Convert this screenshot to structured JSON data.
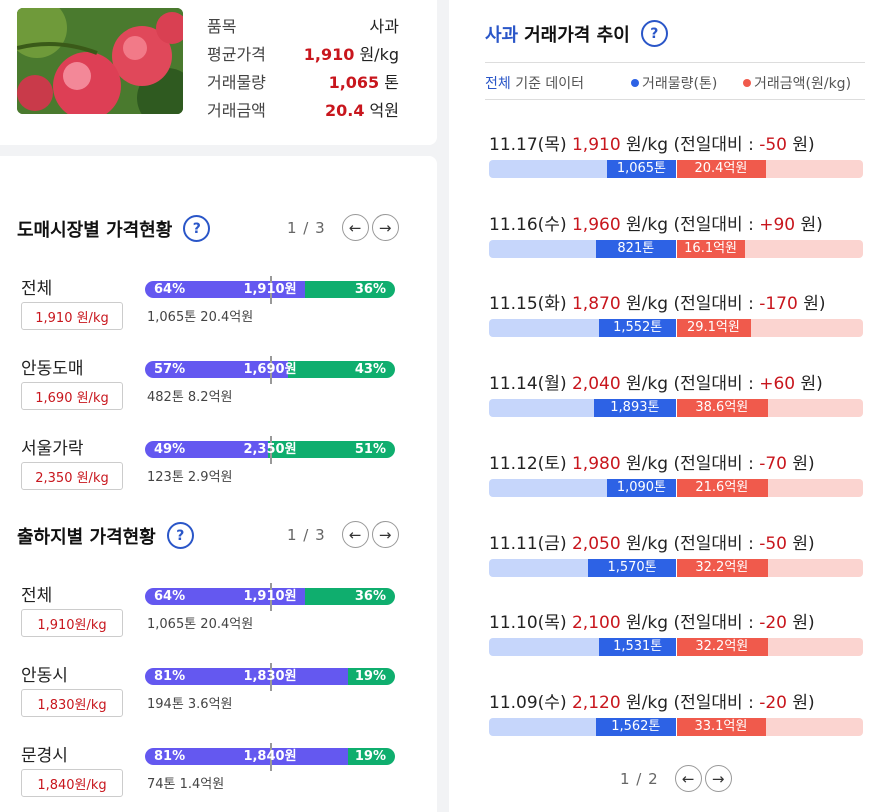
{
  "summary": {
    "rows": [
      {
        "label": "품목",
        "value": "사과",
        "unit": ""
      },
      {
        "label": "평균가격",
        "value": "1,910",
        "unit": " 원/kg"
      },
      {
        "label": "거래물량",
        "value": "1,065",
        "unit": " 톤"
      },
      {
        "label": "거래금액",
        "value": "20.4",
        "unit": " 억원"
      }
    ]
  },
  "wholesale": {
    "title": "도매시장별 가격현황",
    "help": "?",
    "page": "1 / 3",
    "rows": [
      {
        "name": "전체",
        "price": "1,910 원/kg",
        "left_pct": "64%",
        "right_pct": "36%",
        "left_share": 0.64,
        "center": "1,910원",
        "sub": "1,065톤 20.4억원"
      },
      {
        "name": "안동도매",
        "price": "1,690 원/kg",
        "left_pct": "57%",
        "right_pct": "43%",
        "left_share": 0.57,
        "center": "1,690원",
        "sub": "482톤 8.2억원"
      },
      {
        "name": "서울가락",
        "price": "2,350 원/kg",
        "left_pct": "49%",
        "right_pct": "51%",
        "left_share": 0.49,
        "center": "2,350원",
        "sub": "123톤 2.9억원"
      }
    ]
  },
  "origin": {
    "title": "출하지별 가격현황",
    "help": "?",
    "page": "1 / 3",
    "rows": [
      {
        "name": "전체",
        "price": "1,910원/kg",
        "left_pct": "64%",
        "right_pct": "36%",
        "left_share": 0.64,
        "center": "1,910원",
        "sub": "1,065톤 20.4억원"
      },
      {
        "name": "안동시",
        "price": "1,830원/kg",
        "left_pct": "81%",
        "right_pct": "19%",
        "left_share": 0.81,
        "center": "1,830원",
        "sub": "194톤 3.6억원"
      },
      {
        "name": "문경시",
        "price": "1,840원/kg",
        "left_pct": "81%",
        "right_pct": "19%",
        "left_share": 0.81,
        "center": "1,840원",
        "sub": "74톤 1.4억원"
      }
    ]
  },
  "trend": {
    "title_highlight": "사과",
    "title_rest": "거래가격 추이",
    "help": "?",
    "basis_blue": "전체",
    "basis_rest": " 기준 데이터",
    "legend_volume": "거래물량(톤)",
    "legend_amount": "거래금액(원/kg)",
    "colors": {
      "volume": "#2d62e5",
      "amount": "#f05a4c"
    },
    "page": "1 / 2",
    "rows": [
      {
        "date": "11.17(목)",
        "price": "1,910",
        "unit": " 원/kg (전일대비 : ",
        "diff": "-50",
        "tail": " 원)",
        "volume": "1,065톤",
        "amount": "20.4억원",
        "vol_share": 0.37,
        "amt_share": 0.48
      },
      {
        "date": "11.16(수)",
        "price": "1,960",
        "unit": " 원/kg (전일대비 : ",
        "diff": "+90",
        "tail": " 원)",
        "volume": "821톤",
        "amount": "16.1억원",
        "vol_share": 0.43,
        "amt_share": 0.37
      },
      {
        "date": "11.15(화)",
        "price": "1,870",
        "unit": " 원/kg (전일대비 : ",
        "diff": "-170",
        "tail": " 원)",
        "volume": "1,552톤",
        "amount": "29.1억원",
        "vol_share": 0.41,
        "amt_share": 0.4
      },
      {
        "date": "11.14(월)",
        "price": "2,040",
        "unit": " 원/kg (전일대비 : ",
        "diff": "+60",
        "tail": " 원)",
        "volume": "1,893톤",
        "amount": "38.6억원",
        "vol_share": 0.44,
        "amt_share": 0.49
      },
      {
        "date": "11.12(토)",
        "price": "1,980",
        "unit": " 원/kg (전일대비 : ",
        "diff": "-70",
        "tail": " 원)",
        "volume": "1,090톤",
        "amount": "21.6억원",
        "vol_share": 0.37,
        "amt_share": 0.49
      },
      {
        "date": "11.11(금)",
        "price": "2,050",
        "unit": " 원/kg (전일대비 : ",
        "diff": "-50",
        "tail": " 원)",
        "volume": "1,570톤",
        "amount": "32.2억원",
        "vol_share": 0.47,
        "amt_share": 0.49
      },
      {
        "date": "11.10(목)",
        "price": "2,100",
        "unit": " 원/kg (전일대비 : ",
        "diff": "-20",
        "tail": " 원)",
        "volume": "1,531톤",
        "amount": "32.2억원",
        "vol_share": 0.41,
        "amt_share": 0.49
      },
      {
        "date": "11.09(수)",
        "price": "2,120",
        "unit": " 원/kg (전일대비 : ",
        "diff": "-20",
        "tail": " 원)",
        "volume": "1,562톤",
        "amount": "33.1억원",
        "vol_share": 0.43,
        "amt_share": 0.48
      }
    ]
  }
}
